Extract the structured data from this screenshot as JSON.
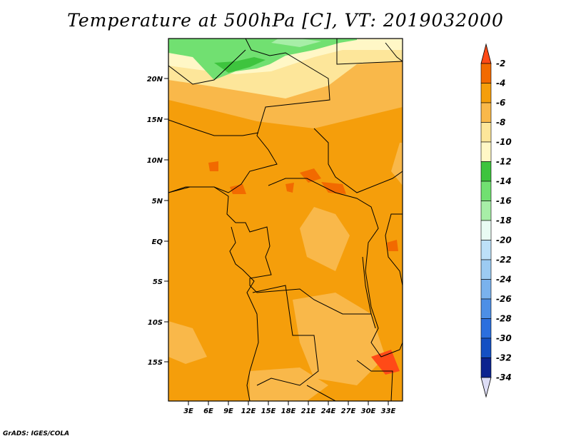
{
  "title": "Temperature at 500hPa [C], VT: 2019032000",
  "credit": "GrADS: IGES/COLA",
  "map": {
    "lat_labels": [
      "20N",
      "15N",
      "10N",
      "5N",
      "EQ",
      "5S",
      "10S",
      "15S"
    ],
    "lon_labels": [
      "3E",
      "6E",
      "9E",
      "12E",
      "15E",
      "18E",
      "21E",
      "24E",
      "27E",
      "30E",
      "33E"
    ]
  },
  "colorbar": {
    "labels": [
      "-2",
      "-4",
      "-6",
      "-8",
      "-10",
      "-12",
      "-14",
      "-16",
      "-18",
      "-20",
      "-22",
      "-24",
      "-26",
      "-28",
      "-30",
      "-32",
      "-34"
    ],
    "colors": [
      "#ff4a17",
      "#f26a00",
      "#f59e0b",
      "#f9b84a",
      "#fde69a",
      "#fff7c6",
      "#3ec43e",
      "#71e071",
      "#a7eea7",
      "#e9fbf3",
      "#bde0f8",
      "#9ccbf2",
      "#7ab2ed",
      "#4d8fe6",
      "#2b6fde",
      "#1450c3",
      "#0c238f",
      "#080a6e",
      "#ddddf6"
    ]
  }
}
